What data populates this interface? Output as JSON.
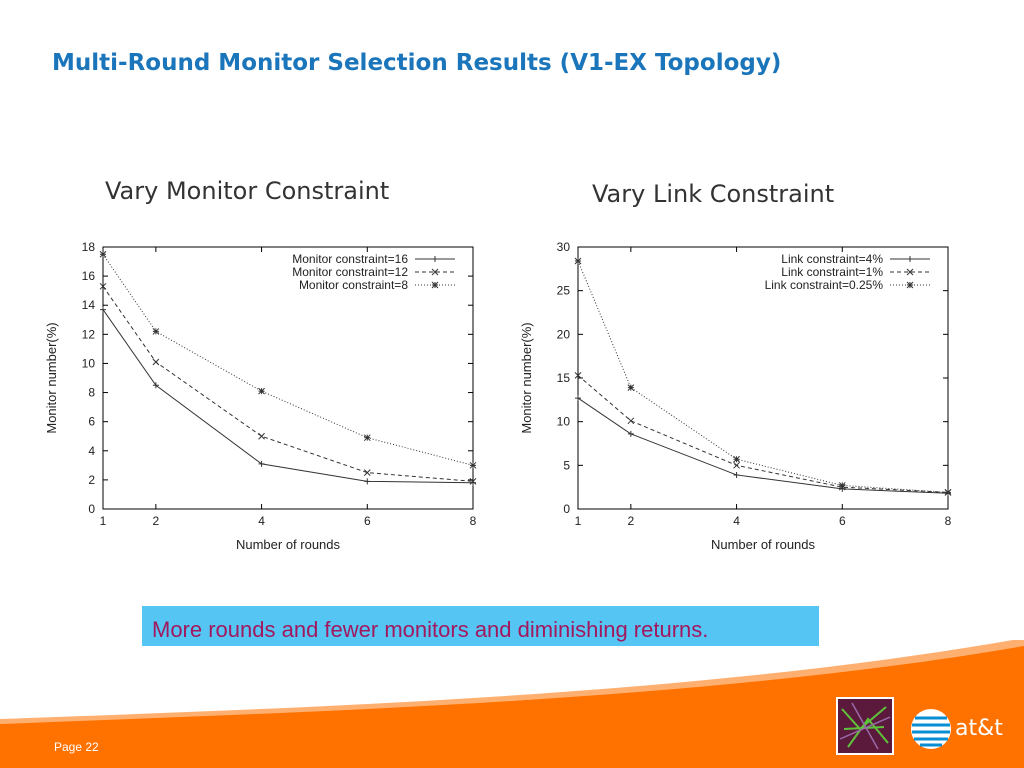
{
  "title": "Multi-Round Monitor Selection Results (V1-EX Topology)",
  "headings": [
    "Vary Monitor Constraint",
    "Vary Link Constraint"
  ],
  "caption": "More rounds and fewer monitors and diminishing returns.",
  "footer": {
    "page": "Page 22",
    "logo_text": "at&t"
  },
  "colors": {
    "title": "#1a75bb",
    "caption_bg": "#55c6f3",
    "caption_text": "#a2185e",
    "footer": "#ff7200"
  },
  "chart_data": [
    {
      "type": "line",
      "title": "",
      "xlabel": "Number of rounds",
      "ylabel": "Monitor number(%)",
      "xlim": [
        1,
        8
      ],
      "ylim": [
        0,
        18
      ],
      "xticks": [
        1,
        2,
        4,
        6,
        8
      ],
      "yticks": [
        0,
        2,
        4,
        6,
        8,
        10,
        12,
        14,
        16,
        18
      ],
      "x": [
        1,
        2,
        4,
        6,
        8
      ],
      "legend": "top-right",
      "series": [
        {
          "name": "Monitor constraint=16",
          "values": [
            13.7,
            8.5,
            3.1,
            1.9,
            1.8
          ],
          "marker": "plus",
          "dash": "solid"
        },
        {
          "name": "Monitor constraint=12",
          "values": [
            15.3,
            10.1,
            5.0,
            2.5,
            1.9
          ],
          "marker": "x",
          "dash": "dashed"
        },
        {
          "name": "Monitor constraint=8",
          "values": [
            17.5,
            12.2,
            8.1,
            4.9,
            3.0
          ],
          "marker": "star",
          "dash": "dotted"
        }
      ]
    },
    {
      "type": "line",
      "title": "",
      "xlabel": "Number of rounds",
      "ylabel": "Monitor number(%)",
      "xlim": [
        1,
        8
      ],
      "ylim": [
        0,
        30
      ],
      "xticks": [
        1,
        2,
        4,
        6,
        8
      ],
      "yticks": [
        0,
        5,
        10,
        15,
        20,
        25,
        30
      ],
      "x": [
        1,
        2,
        4,
        6,
        8
      ],
      "legend": "top-right",
      "series": [
        {
          "name": "Link constraint=4%",
          "values": [
            12.7,
            8.6,
            3.9,
            2.3,
            1.8
          ],
          "marker": "plus",
          "dash": "solid"
        },
        {
          "name": "Link constraint=1%",
          "values": [
            15.3,
            10.1,
            5.0,
            2.5,
            1.9
          ],
          "marker": "x",
          "dash": "dashed"
        },
        {
          "name": "Link constraint=0.25%",
          "values": [
            28.4,
            13.9,
            5.7,
            2.7,
            1.9
          ],
          "marker": "star",
          "dash": "dotted"
        }
      ]
    }
  ]
}
